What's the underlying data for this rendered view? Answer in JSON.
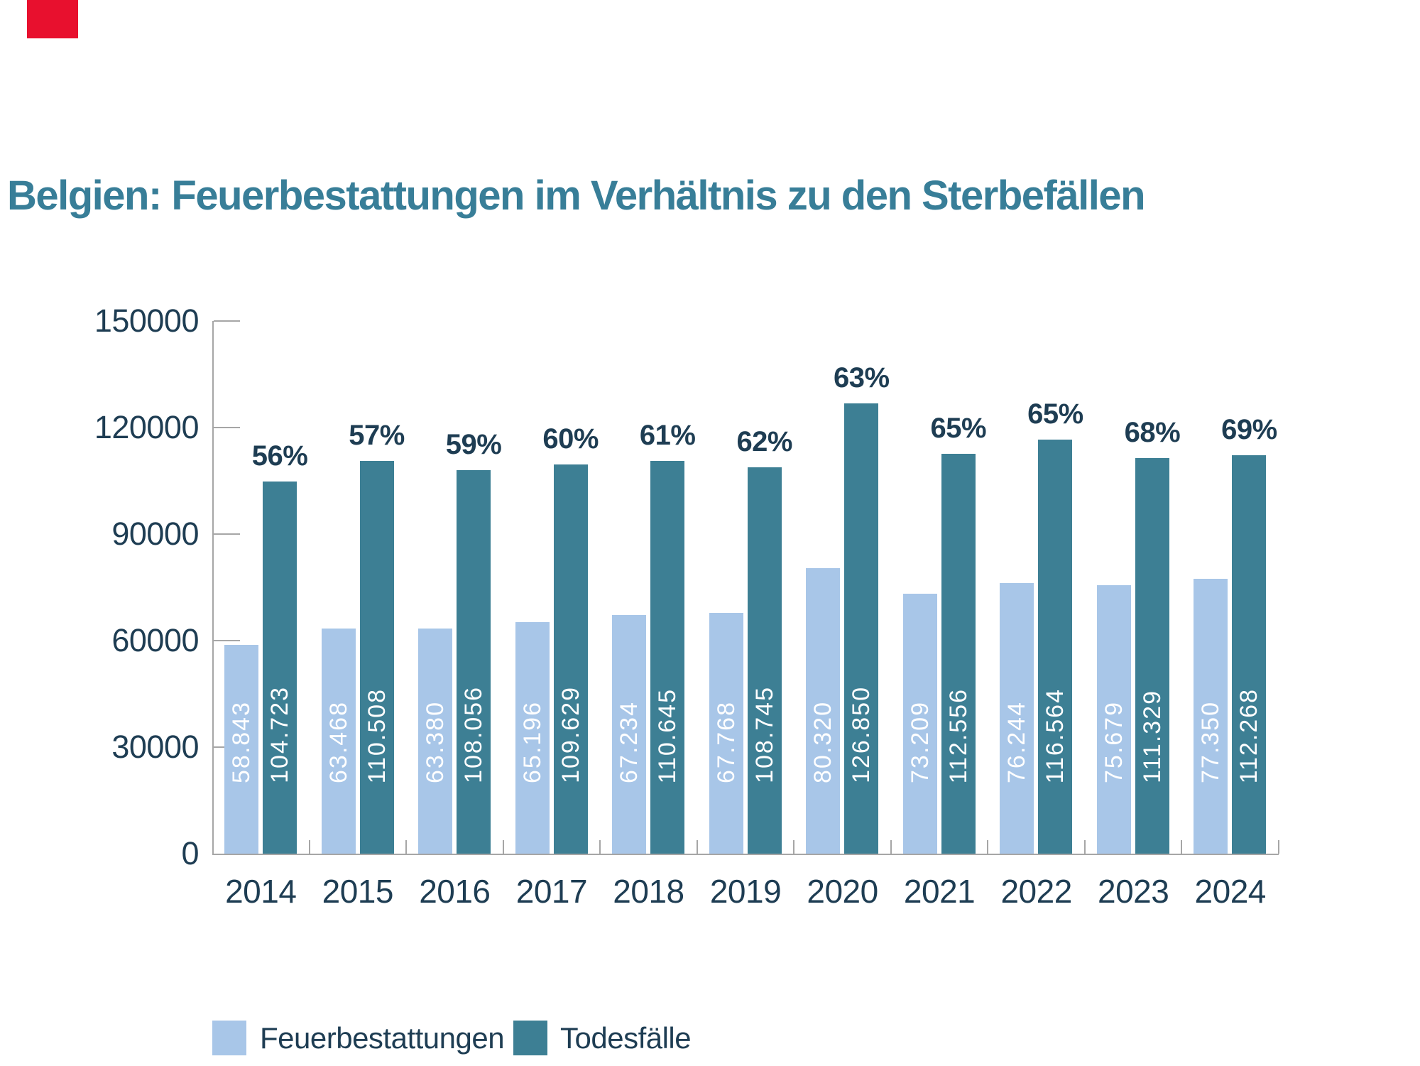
{
  "title": "Belgien: Feuerbestattungen im Verhältnis zu den Sterbefällen",
  "colors": {
    "light_blue": "#a8c6e8",
    "teal": "#3d7f94",
    "navy_text": "#1e3d53",
    "title_teal": "#387e98",
    "axis_gray": "#a6a6a6",
    "bar_label_white": "#ffffff",
    "red_marker": "#e8102e"
  },
  "chart_data": {
    "type": "bar",
    "categories": [
      "2014",
      "2015",
      "2016",
      "2017",
      "2018",
      "2019",
      "2020",
      "2021",
      "2022",
      "2023",
      "2024"
    ],
    "series": [
      {
        "name": "Feuerbestattungen",
        "values": [
          58843,
          63468,
          63380,
          65196,
          67234,
          67768,
          80320,
          73209,
          76244,
          75679,
          77350
        ],
        "labels": [
          "58.843",
          "63.468",
          "63.380",
          "65.196",
          "67.234",
          "67.768",
          "80.320",
          "73.209",
          "76.244",
          "75.679",
          "77.350"
        ]
      },
      {
        "name": "Todesfälle",
        "values": [
          104723,
          110508,
          108056,
          109629,
          110645,
          108745,
          126850,
          112556,
          116564,
          111329,
          112268
        ],
        "labels": [
          "104.723",
          "110.508",
          "108.056",
          "109.629",
          "110.645",
          "108.745",
          "126.850",
          "112.556",
          "116.564",
          "111.329",
          "112.268"
        ]
      }
    ],
    "percent_labels": [
      "56%",
      "57%",
      "59%",
      "60%",
      "61%",
      "62%",
      "63%",
      "65%",
      "65%",
      "68%",
      "69%"
    ],
    "y_axis": {
      "ylim": [
        0,
        150000
      ],
      "ticks": [
        0,
        30000,
        60000,
        90000,
        120000,
        150000
      ],
      "tick_labels": [
        "0",
        "30000",
        "60000",
        "90000",
        "120000",
        "150000"
      ]
    },
    "grid": false,
    "legend_position": "bottom"
  },
  "legend": {
    "items": [
      {
        "label": "Feuerbestattungen",
        "swatch": "light_blue"
      },
      {
        "label": "Todesfälle",
        "swatch": "teal"
      }
    ]
  }
}
